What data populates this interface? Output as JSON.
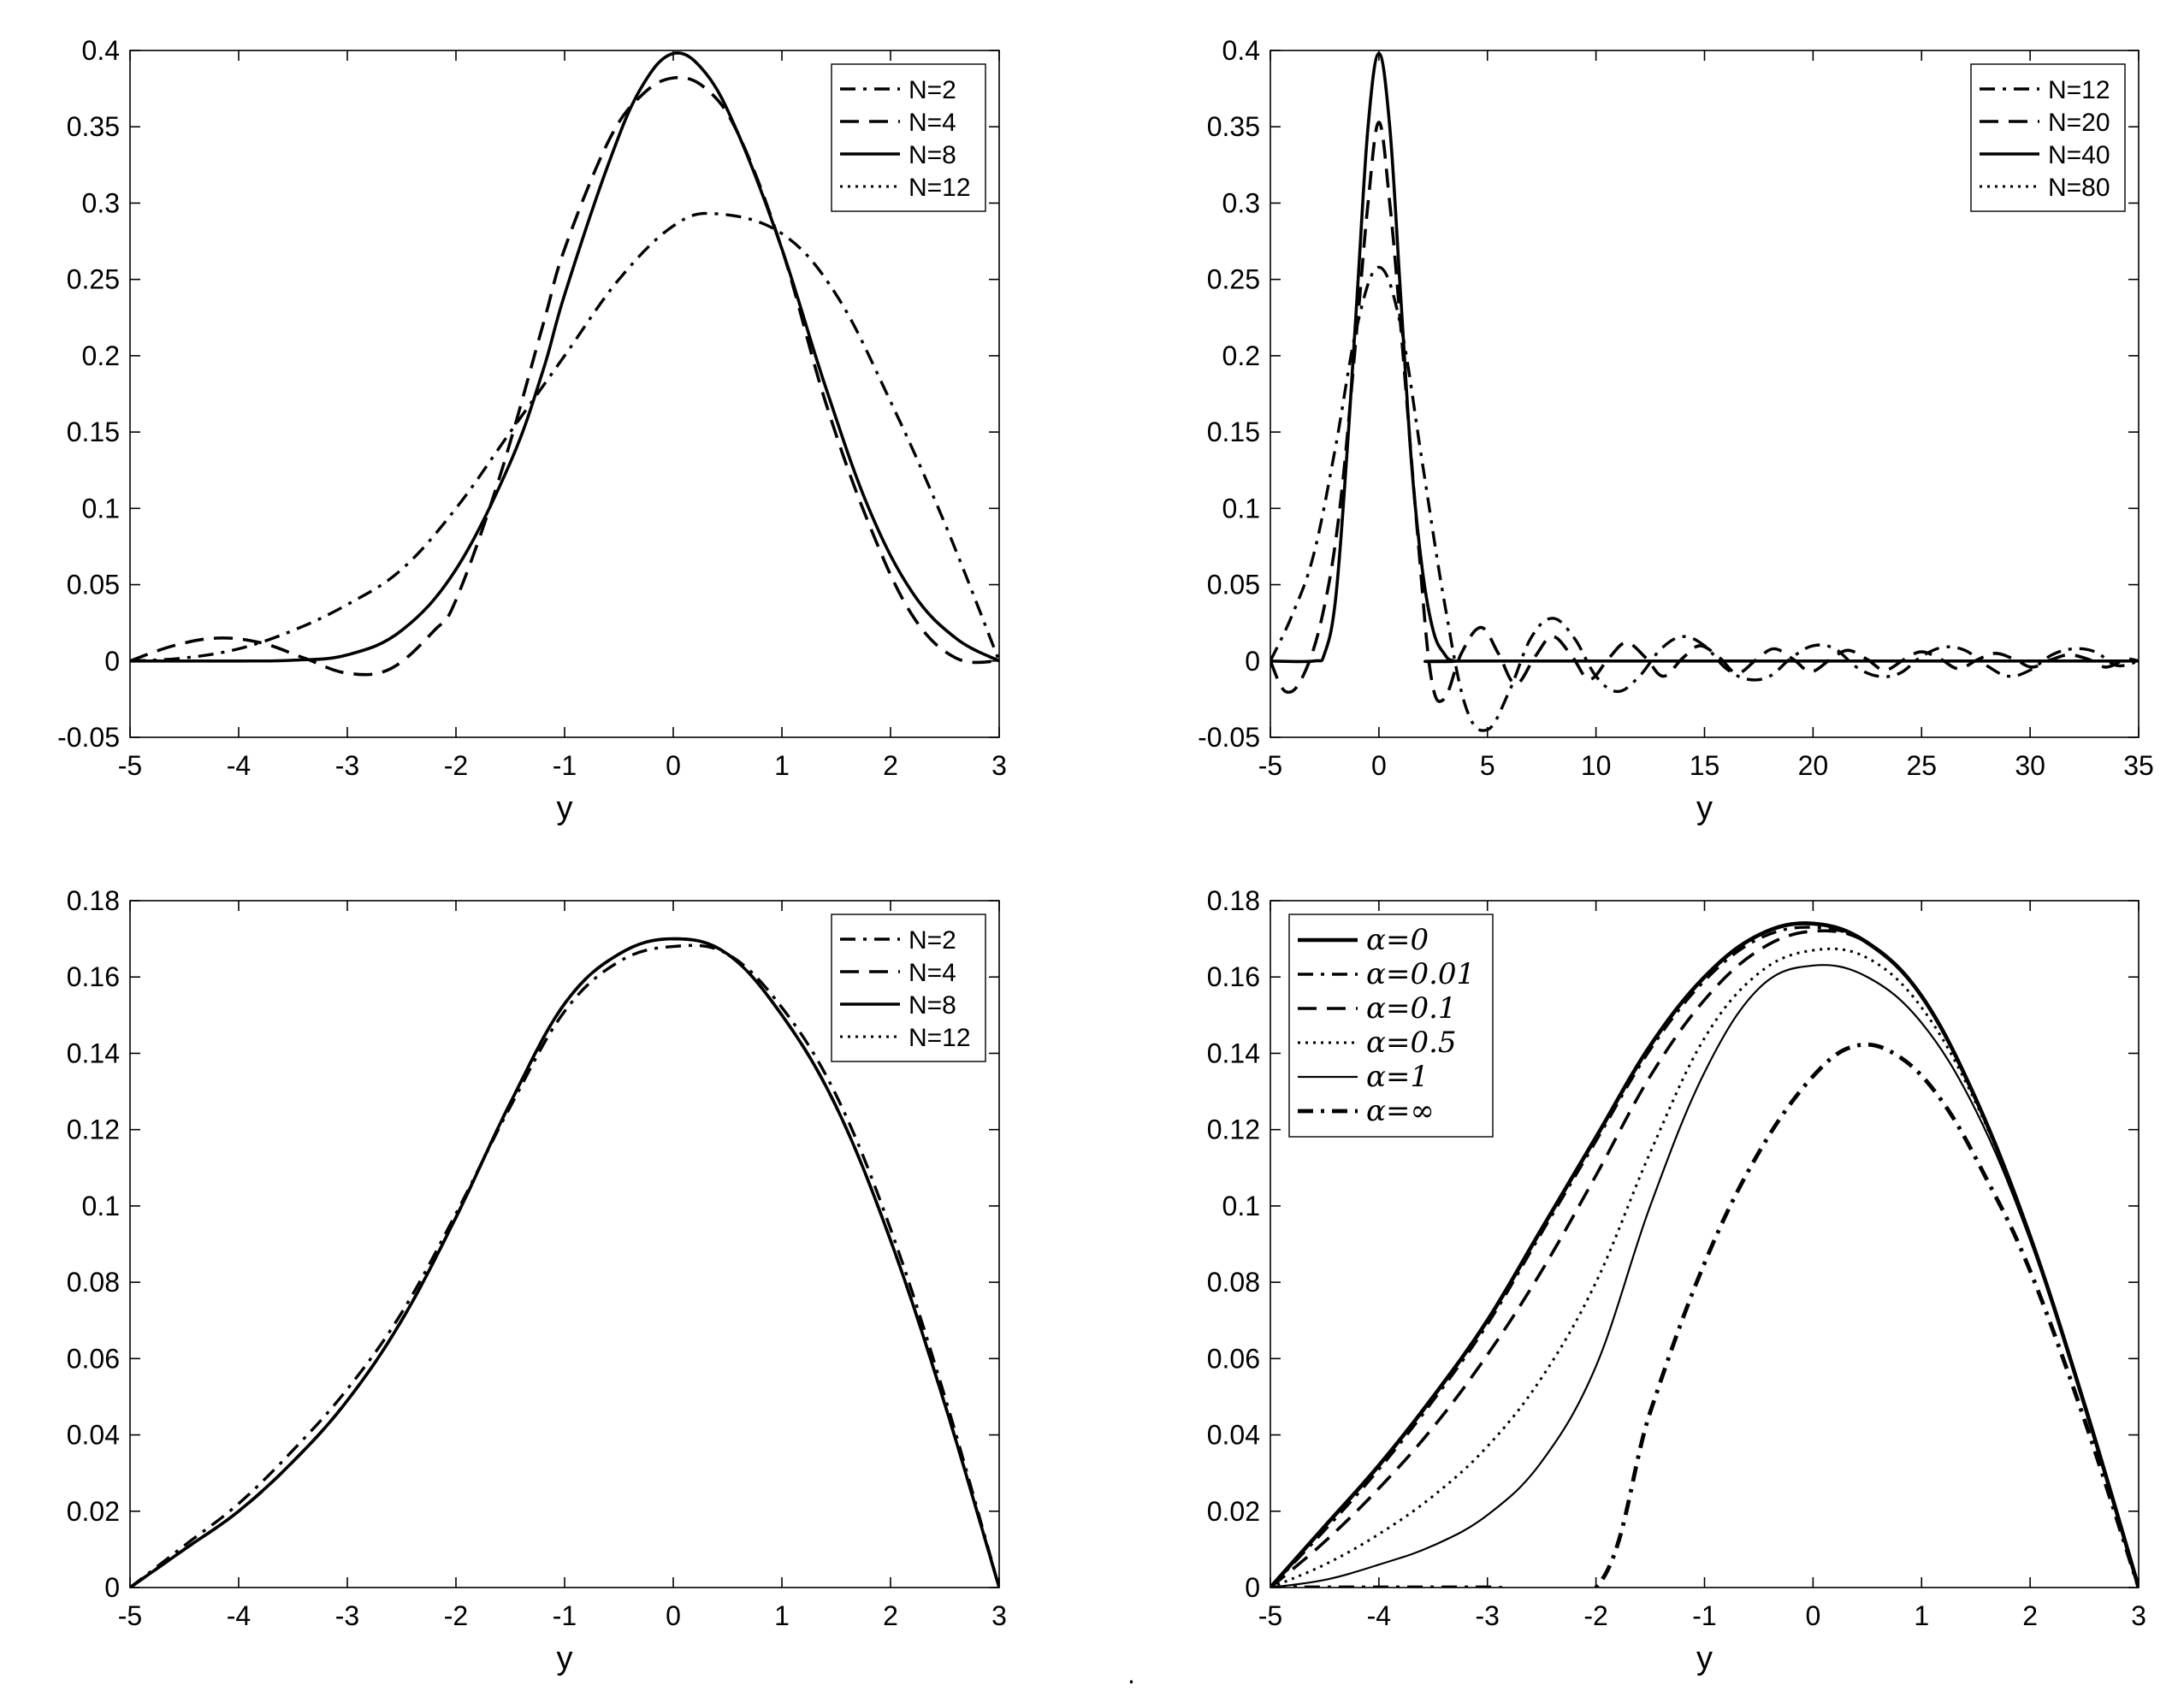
{
  "chart_data": [
    {
      "type": "line",
      "panel": "top-left",
      "xlabel": "y",
      "ylabel": "",
      "xlim": [
        -5,
        3
      ],
      "ylim": [
        -0.05,
        0.4
      ],
      "xticks": [
        -5,
        -4,
        -3,
        -2,
        -1,
        0,
        1,
        2,
        3
      ],
      "yticks": [
        -0.05,
        0,
        0.05,
        0.1,
        0.15,
        0.2,
        0.25,
        0.3,
        0.35,
        0.4
      ],
      "xtick_labels": [
        "-5",
        "-4",
        "-3",
        "-2",
        "-1",
        "0",
        "1",
        "2",
        "3"
      ],
      "ytick_labels": [
        "-0.05",
        "0",
        "0.05",
        "0.1",
        "0.15",
        "0.2",
        "0.25",
        "0.3",
        "0.35",
        "0.4"
      ],
      "legend_position": "top-right",
      "series": [
        {
          "name": "N=2",
          "style": "dashdot",
          "x": [
            -5,
            -4.5,
            -4,
            -3.5,
            -3,
            -2.5,
            -2,
            -1.5,
            -1,
            -0.5,
            0,
            0.4,
            1,
            1.5,
            2,
            2.5,
            3
          ],
          "y": [
            0,
            0.002,
            0.008,
            0.02,
            0.037,
            0.06,
            0.1,
            0.15,
            0.2,
            0.25,
            0.285,
            0.293,
            0.28,
            0.24,
            0.17,
            0.09,
            0
          ]
        },
        {
          "name": "N=4",
          "style": "dashed",
          "x": [
            -5,
            -4.6,
            -4.2,
            -3.8,
            -3.4,
            -3.0,
            -2.6,
            -2.2,
            -2.0,
            -1.6,
            -1.2,
            -1.0,
            -0.6,
            -0.3,
            0,
            0.3,
            0.6,
            1.0,
            1.4,
            1.8,
            2.2,
            2.6,
            3.0
          ],
          "y": [
            0,
            0.01,
            0.015,
            0.012,
            0.002,
            -0.008,
            -0.005,
            0.02,
            0.04,
            0.12,
            0.22,
            0.27,
            0.34,
            0.37,
            0.382,
            0.375,
            0.345,
            0.27,
            0.17,
            0.09,
            0.03,
            0.002,
            0
          ]
        },
        {
          "name": "N=8",
          "style": "solid",
          "x": [
            -5,
            -4,
            -3.5,
            -3,
            -2.5,
            -2,
            -1.5,
            -1.2,
            -1,
            -0.6,
            -0.3,
            0,
            0.3,
            0.6,
            1,
            1.4,
            1.8,
            2.2,
            2.6,
            3
          ],
          "y": [
            0,
            0,
            0.0005,
            0.004,
            0.02,
            0.06,
            0.13,
            0.19,
            0.24,
            0.325,
            0.375,
            0.398,
            0.385,
            0.345,
            0.27,
            0.18,
            0.1,
            0.045,
            0.015,
            0
          ]
        },
        {
          "name": "N=12",
          "style": "dotted",
          "x": [
            -5,
            -4,
            -3.5,
            -3,
            -2.5,
            -2,
            -1.5,
            -1.2,
            -1,
            -0.6,
            -0.3,
            0,
            0.3,
            0.6,
            1,
            1.4,
            1.8,
            2.2,
            2.6,
            3
          ],
          "y": [
            0,
            0,
            0.0005,
            0.004,
            0.02,
            0.06,
            0.13,
            0.19,
            0.24,
            0.325,
            0.375,
            0.398,
            0.385,
            0.345,
            0.27,
            0.18,
            0.1,
            0.045,
            0.015,
            0
          ]
        }
      ]
    },
    {
      "type": "line",
      "panel": "top-right",
      "xlabel": "y",
      "ylabel": "",
      "xlim": [
        -5,
        35
      ],
      "ylim": [
        -0.05,
        0.4
      ],
      "xticks": [
        -5,
        0,
        5,
        10,
        15,
        20,
        25,
        30,
        35
      ],
      "yticks": [
        -0.05,
        0,
        0.05,
        0.1,
        0.15,
        0.2,
        0.25,
        0.3,
        0.35,
        0.4
      ],
      "xtick_labels": [
        "-5",
        "0",
        "5",
        "10",
        "15",
        "20",
        "25",
        "30",
        "35"
      ],
      "ytick_labels": [
        "-0.05",
        "0",
        "0.05",
        "0.1",
        "0.15",
        "0.2",
        "0.25",
        "0.3",
        "0.35",
        "0.4"
      ],
      "legend_position": "top-right",
      "series": [
        {
          "name": "N=12",
          "style": "dashdot",
          "x": [
            -5,
            -4,
            -3,
            -2,
            -1,
            0,
            1,
            2,
            3,
            4,
            5,
            6,
            7,
            8,
            9,
            10,
            11,
            12,
            13,
            14,
            15,
            16,
            17,
            18,
            19,
            20,
            21,
            22,
            23,
            24,
            25,
            26,
            27,
            28,
            29,
            30,
            31,
            32,
            33,
            34,
            35
          ],
          "y": [
            0,
            0.03,
            0.07,
            0.14,
            0.22,
            0.258,
            0.22,
            0.13,
            0.04,
            -0.03,
            -0.045,
            -0.02,
            0.015,
            0.028,
            0.015,
            -0.01,
            -0.02,
            -0.01,
            0.008,
            0.016,
            0.01,
            -0.005,
            -0.012,
            -0.01,
            0.002,
            0.01,
            0.008,
            -0.004,
            -0.01,
            -0.008,
            0.003,
            0.009,
            0.007,
            -0.003,
            -0.01,
            -0.006,
            0.004,
            0.008,
            0.006,
            -0.003,
            0
          ]
        },
        {
          "name": "N=20",
          "style": "dashed",
          "x": [
            -5,
            -4.3,
            -3.5,
            -2.6,
            -1.8,
            -1,
            -0.5,
            0,
            0.5,
            1,
            1.8,
            2.4,
            3.0,
            3.8,
            4.7,
            5.5,
            6.3,
            7.2,
            8.0,
            8.9,
            9.7,
            10.6,
            11.4,
            12.3,
            13.1,
            14.0,
            14.8,
            15.7,
            16.5,
            17.4,
            18.2,
            19.1,
            19.9,
            20.8,
            21.6,
            22.5,
            23.3,
            24.2,
            25.0,
            25.9,
            26.7,
            27.6,
            28.4,
            29.3,
            30.1,
            31.0,
            31.8,
            32.7,
            33.5,
            34.4,
            35
          ],
          "y": [
            0,
            -0.02,
            -0.01,
            0.03,
            0.1,
            0.22,
            0.3,
            0.353,
            0.3,
            0.22,
            0.08,
            -0.01,
            -0.025,
            0.005,
            0.022,
            0.005,
            -0.015,
            0.003,
            0.016,
            0.003,
            -0.012,
            0.002,
            0.012,
            0.002,
            -0.01,
            0.002,
            0.01,
            0.002,
            -0.008,
            0.001,
            0.008,
            0.001,
            -0.007,
            0.001,
            0.007,
            0.001,
            -0.006,
            0.001,
            0.006,
            0.001,
            -0.005,
            0.001,
            0.005,
            0.001,
            -0.004,
            0.001,
            0.004,
            0.001,
            -0.004,
            0.001,
            0
          ]
        },
        {
          "name": "N=40",
          "style": "solid",
          "x": [
            -5,
            -3,
            -2.5,
            -2,
            -1.5,
            -1,
            -0.5,
            0,
            0.5,
            1,
            1.5,
            2,
            2.5,
            3,
            3.5,
            5,
            35
          ],
          "y": [
            0,
            0,
            0.005,
            0.04,
            0.13,
            0.24,
            0.35,
            0.398,
            0.35,
            0.24,
            0.13,
            0.06,
            0.02,
            0.005,
            0,
            0,
            0
          ]
        },
        {
          "name": "N=80",
          "style": "dotted",
          "x": [
            -5,
            -3,
            -2.5,
            -2,
            -1.5,
            -1,
            -0.5,
            0,
            0.5,
            1,
            1.5,
            2,
            2.5,
            3,
            3.5,
            5,
            35
          ],
          "y": [
            0,
            0,
            0.005,
            0.04,
            0.13,
            0.24,
            0.35,
            0.398,
            0.35,
            0.24,
            0.13,
            0.06,
            0.02,
            0.005,
            0,
            0,
            0
          ]
        }
      ]
    },
    {
      "type": "line",
      "panel": "bottom-left",
      "xlabel": "y",
      "ylabel": "",
      "xlim": [
        -5,
        3
      ],
      "ylim": [
        0,
        0.18
      ],
      "xticks": [
        -5,
        -4,
        -3,
        -2,
        -1,
        0,
        1,
        2,
        3
      ],
      "yticks": [
        0,
        0.02,
        0.04,
        0.06,
        0.08,
        0.1,
        0.12,
        0.14,
        0.16,
        0.18
      ],
      "xtick_labels": [
        "-5",
        "-4",
        "-3",
        "-2",
        "-1",
        "0",
        "1",
        "2",
        "3"
      ],
      "ytick_labels": [
        "0",
        "0.02",
        "0.04",
        "0.06",
        "0.08",
        "0.1",
        "0.12",
        "0.14",
        "0.16",
        "0.18"
      ],
      "legend_position": "top-right",
      "series": [
        {
          "name": "N=2",
          "style": "dashdot",
          "x": [
            -5,
            -4.5,
            -4,
            -3.5,
            -3,
            -2.5,
            -2,
            -1.5,
            -1,
            -0.5,
            0,
            0.5,
            1,
            1.5,
            2,
            2.5,
            3
          ],
          "y": [
            0,
            0.011,
            0.022,
            0.036,
            0.052,
            0.072,
            0.098,
            0.126,
            0.151,
            0.164,
            0.168,
            0.166,
            0.152,
            0.129,
            0.094,
            0.05,
            0
          ]
        },
        {
          "name": "N=4",
          "style": "dashed",
          "x": [
            -5,
            -4.5,
            -4,
            -3.5,
            -3,
            -2.5,
            -2,
            -1.5,
            -1,
            -0.5,
            0,
            0.5,
            1,
            1.5,
            2,
            2.5,
            3
          ],
          "y": [
            0,
            0.01,
            0.02,
            0.033,
            0.049,
            0.07,
            0.097,
            0.127,
            0.153,
            0.166,
            0.17,
            0.166,
            0.15,
            0.126,
            0.091,
            0.048,
            0
          ]
        },
        {
          "name": "N=8",
          "style": "solid",
          "x": [
            -5,
            -4.5,
            -4,
            -3.5,
            -3,
            -2.5,
            -2,
            -1.5,
            -1,
            -0.5,
            0,
            0.5,
            1,
            1.5,
            2,
            2.5,
            3
          ],
          "y": [
            0,
            0.01,
            0.02,
            0.033,
            0.049,
            0.07,
            0.097,
            0.127,
            0.153,
            0.166,
            0.17,
            0.166,
            0.15,
            0.126,
            0.091,
            0.048,
            0
          ]
        },
        {
          "name": "N=12",
          "style": "dotted",
          "x": [
            -5,
            -4.5,
            -4,
            -3.5,
            -3,
            -2.5,
            -2,
            -1.5,
            -1,
            -0.5,
            0,
            0.5,
            1,
            1.5,
            2,
            2.5,
            3
          ],
          "y": [
            0,
            0.01,
            0.02,
            0.033,
            0.049,
            0.07,
            0.097,
            0.127,
            0.153,
            0.166,
            0.17,
            0.166,
            0.15,
            0.126,
            0.091,
            0.048,
            0
          ]
        }
      ]
    },
    {
      "type": "line",
      "panel": "bottom-right",
      "xlabel": "y",
      "ylabel": "",
      "xlim": [
        -5,
        3
      ],
      "ylim": [
        0,
        0.18
      ],
      "xticks": [
        -5,
        -4,
        -3,
        -2,
        -1,
        0,
        1,
        2,
        3
      ],
      "yticks": [
        0,
        0.02,
        0.04,
        0.06,
        0.08,
        0.1,
        0.12,
        0.14,
        0.16,
        0.18
      ],
      "xtick_labels": [
        "-5",
        "-4",
        "-3",
        "-2",
        "-1",
        "0",
        "1",
        "2",
        "3"
      ],
      "ytick_labels": [
        "0",
        "0.02",
        "0.04",
        "0.06",
        "0.08",
        "0.1",
        "0.12",
        "0.14",
        "0.16",
        "0.18"
      ],
      "legend_position": "top-left",
      "series": [
        {
          "name": "α=0",
          "style": "solid-thick",
          "x": [
            -5,
            -4.5,
            -4,
            -3.5,
            -3,
            -2.5,
            -2,
            -1.5,
            -1,
            -0.5,
            0,
            0.5,
            1,
            1.5,
            2,
            2.5,
            3
          ],
          "y": [
            0,
            0.016,
            0.032,
            0.05,
            0.07,
            0.094,
            0.118,
            0.142,
            0.16,
            0.171,
            0.174,
            0.169,
            0.155,
            0.128,
            0.092,
            0.048,
            0
          ]
        },
        {
          "name": "α=0.01",
          "style": "dashdot",
          "x": [
            -5,
            -4.5,
            -4,
            -3.5,
            -3,
            -2.5,
            -2,
            -1.5,
            -1,
            -0.5,
            0,
            0.5,
            1,
            1.5,
            2,
            2.5,
            3
          ],
          "y": [
            0,
            0.015,
            0.031,
            0.049,
            0.069,
            0.093,
            0.117,
            0.141,
            0.159,
            0.17,
            0.173,
            0.169,
            0.155,
            0.128,
            0.092,
            0.048,
            0
          ]
        },
        {
          "name": "α=0.1",
          "style": "dashed",
          "x": [
            -5,
            -4.5,
            -4,
            -3.5,
            -3,
            -2.5,
            -2,
            -1.5,
            -1,
            -0.5,
            0,
            0.5,
            1,
            1.5,
            2,
            2.5,
            3
          ],
          "y": [
            0,
            0.012,
            0.026,
            0.042,
            0.061,
            0.083,
            0.108,
            0.134,
            0.154,
            0.167,
            0.172,
            0.169,
            0.155,
            0.128,
            0.092,
            0.048,
            0
          ]
        },
        {
          "name": "α=0.5",
          "style": "dotted",
          "x": [
            -5,
            -4.5,
            -4,
            -3.5,
            -3,
            -2.5,
            -2,
            -1.5,
            -1,
            -0.5,
            0,
            0.5,
            1,
            1.5,
            2,
            2.5,
            3
          ],
          "y": [
            0,
            0.006,
            0.014,
            0.024,
            0.037,
            0.055,
            0.08,
            0.114,
            0.144,
            0.161,
            0.167,
            0.165,
            0.152,
            0.127,
            0.092,
            0.048,
            0
          ]
        },
        {
          "name": "α=1",
          "style": "solid-thin",
          "x": [
            -5,
            -4.5,
            -4,
            -3.5,
            -3,
            -2.5,
            -2,
            -1.5,
            -1,
            -0.5,
            0,
            0.5,
            1,
            1.5,
            2,
            2.5,
            3
          ],
          "y": [
            0,
            0.002,
            0.006,
            0.011,
            0.019,
            0.033,
            0.058,
            0.1,
            0.135,
            0.157,
            0.163,
            0.16,
            0.148,
            0.125,
            0.091,
            0.048,
            0
          ]
        },
        {
          "name": "α=∞",
          "style": "dashdot-thick",
          "x": [
            -5,
            -3,
            -2.0,
            -1.5,
            -1,
            -0.5,
            0,
            0.4,
            0.8,
            1.2,
            1.6,
            2,
            2.5,
            3
          ],
          "y": [
            0,
            0,
            0,
            0.046,
            0.085,
            0.114,
            0.134,
            0.142,
            0.139,
            0.127,
            0.107,
            0.083,
            0.044,
            0
          ]
        }
      ]
    }
  ],
  "footer_mark": "."
}
